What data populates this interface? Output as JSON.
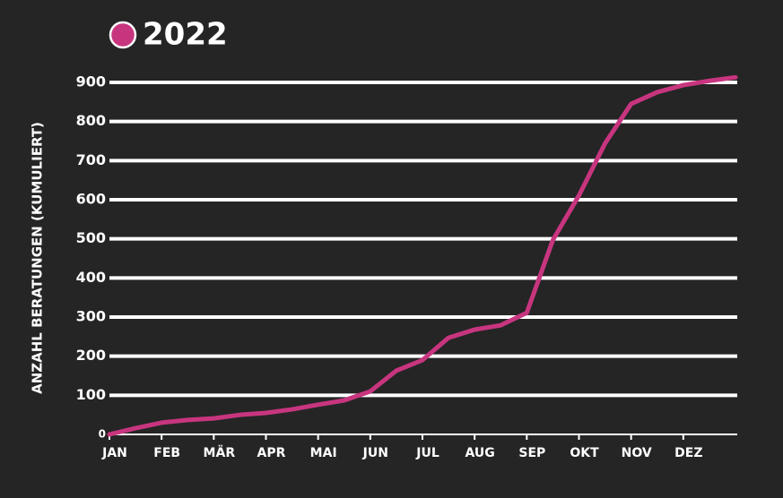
{
  "chart_data": {
    "type": "line",
    "title": "2022",
    "ylabel": "ANZAHL BERATUNGEN (KUMULIERT)",
    "categories": [
      "JAN",
      null,
      "FEB",
      null,
      "MÄR",
      null,
      "APR",
      null,
      "MAI",
      null,
      "JUN",
      null,
      "JUL",
      null,
      "AUG",
      null,
      "SEP",
      null,
      "OKT",
      null,
      "NOV",
      null,
      "DEZ",
      null,
      null
    ],
    "series": [
      {
        "name": "2022",
        "color": "#c8357f",
        "values": [
          0,
          16,
          30,
          37,
          41,
          50,
          55,
          64,
          76,
          87,
          110,
          163,
          190,
          247,
          268,
          279,
          311,
          497,
          611,
          744,
          845,
          875,
          893,
          904,
          913
        ]
      }
    ],
    "ylim": [
      0,
      900
    ],
    "yticks": [
      0,
      100,
      200,
      300,
      400,
      500,
      600,
      700,
      800,
      900
    ],
    "grid": true
  }
}
